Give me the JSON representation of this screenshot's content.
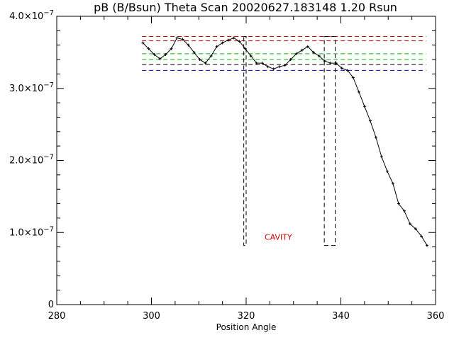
{
  "chart_data": {
    "type": "line",
    "title": "pB (B/Bsun) Theta Scan 20020627.183148 1.20 Rsun",
    "xlabel": "Position Angle",
    "ylabel": "",
    "xlim": [
      280,
      360
    ],
    "ylim": [
      0,
      4e-07
    ],
    "x_ticks": [
      {
        "value": 280,
        "label": "280"
      },
      {
        "value": 300,
        "label": "300"
      },
      {
        "value": 320,
        "label": "320"
      },
      {
        "value": 340,
        "label": "340"
      },
      {
        "value": 360,
        "label": "360"
      }
    ],
    "y_ticks": [
      {
        "value": 0,
        "mantissa": "0",
        "exponent": ""
      },
      {
        "value": 1e-07,
        "mantissa": "1.0×10",
        "exponent": "−7"
      },
      {
        "value": 2e-07,
        "mantissa": "2.0×10",
        "exponent": "−7"
      },
      {
        "value": 3e-07,
        "mantissa": "3.0×10",
        "exponent": "−7"
      },
      {
        "value": 4e-07,
        "mantissa": "4.0×10",
        "exponent": "−7"
      }
    ],
    "grid": false,
    "series": [
      {
        "style": "solid line with plus markers",
        "color": "#000000",
        "x": [
          298.2,
          299.4,
          300.6,
          301.8,
          303.0,
          304.2,
          305.4,
          306.6,
          307.8,
          309.0,
          310.2,
          311.4,
          312.6,
          313.8,
          315.0,
          316.2,
          317.4,
          318.6,
          319.8,
          321.0,
          322.2,
          323.4,
          324.6,
          325.8,
          327.0,
          328.2,
          329.4,
          330.6,
          331.8,
          333.0,
          334.2,
          335.4,
          336.6,
          337.8,
          339.0,
          340.2,
          341.4,
          342.6,
          343.8,
          345.0,
          346.2,
          347.4,
          348.6,
          349.8,
          351.0,
          352.2,
          353.4,
          354.6,
          355.8,
          357.0,
          358.2
        ],
        "y": [
          3.63e-07,
          3.55e-07,
          3.47e-07,
          3.41e-07,
          3.47e-07,
          3.55e-07,
          3.7e-07,
          3.68e-07,
          3.6e-07,
          3.5e-07,
          3.4e-07,
          3.35e-07,
          3.45e-07,
          3.58e-07,
          3.63e-07,
          3.67e-07,
          3.7e-07,
          3.65e-07,
          3.55e-07,
          3.45e-07,
          3.35e-07,
          3.35e-07,
          3.3e-07,
          3.27e-07,
          3.3e-07,
          3.32e-07,
          3.4e-07,
          3.48e-07,
          3.53e-07,
          3.58e-07,
          3.5e-07,
          3.45e-07,
          3.38e-07,
          3.35e-07,
          3.35e-07,
          3.28e-07,
          3.25e-07,
          3.15e-07,
          2.95e-07,
          2.75e-07,
          2.55e-07,
          2.32e-07,
          2.05e-07,
          1.85e-07,
          1.68e-07,
          1.4e-07,
          1.3e-07,
          1.12e-07,
          1.05e-07,
          9.5e-08,
          8.2e-08
        ]
      }
    ],
    "reference_lines": [
      {
        "style": "dashed",
        "color": "#cc0000",
        "y": 3.72e-07,
        "x_range": [
          298,
          358
        ]
      },
      {
        "style": "dashed",
        "color": "#cc0000",
        "y": 3.66e-07,
        "x_range": [
          298,
          358
        ]
      },
      {
        "style": "dashed",
        "color": "#00bb00",
        "y": 3.48e-07,
        "x_range": [
          298,
          358
        ]
      },
      {
        "style": "dashed",
        "color": "#00bb00",
        "y": 3.4e-07,
        "x_range": [
          298,
          358
        ]
      },
      {
        "style": "dashed",
        "color": "#000000",
        "y": 3.33e-07,
        "x_range": [
          298,
          358
        ]
      },
      {
        "style": "dashed",
        "color": "#0000cc",
        "y": 3.25e-07,
        "x_range": [
          298,
          358
        ]
      }
    ],
    "region_boxes": [
      {
        "style": "dashed",
        "color": "#000000",
        "x": [
          319.5,
          320.0
        ],
        "y": [
          8.2e-08,
          3.72e-07
        ]
      },
      {
        "style": "dashed",
        "color": "#000000",
        "x": [
          336.5,
          338.8
        ],
        "y": [
          8.2e-08,
          3.72e-07
        ]
      }
    ],
    "annotations": [
      {
        "text": "CAVITY",
        "x": 326.8,
        "y": 9.4e-08,
        "color": "#cc0000"
      }
    ]
  }
}
